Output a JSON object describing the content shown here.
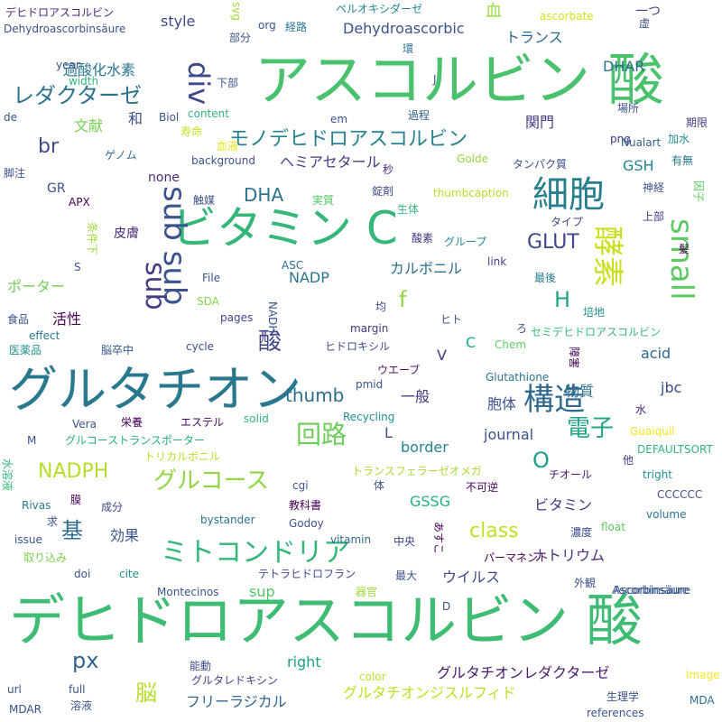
{
  "words": [
    {
      "t": "デヒドロアスコルビン 酸",
      "c": "#3fbc73"
    },
    {
      "t": "アスコルビン 酸",
      "c": "#4ac16d"
    },
    {
      "t": "グルタチオン",
      "c": "#2a788e"
    },
    {
      "t": "ビタミン C",
      "c": "#35b779"
    },
    {
      "t": "細胞",
      "c": "#277f8e"
    },
    {
      "t": "sub sub",
      "c": "#3b528b",
      "v": true
    },
    {
      "t": "sub",
      "c": "#433e85",
      "v": true
    },
    {
      "t": "small",
      "c": "#5ec962",
      "v": true
    },
    {
      "t": "div",
      "c": "#3e4989",
      "v": true
    },
    {
      "t": "構造",
      "c": "#31688e"
    },
    {
      "t": "酵素",
      "c": "#c8e020",
      "v": true
    },
    {
      "t": "ミトコンドリア",
      "c": "#35b779"
    },
    {
      "t": "回路",
      "c": "#6ccd5a"
    },
    {
      "t": "グルコース",
      "c": "#90d743"
    },
    {
      "t": "NADPH",
      "c": "#b5de2b"
    },
    {
      "t": "レダクターゼ",
      "c": "#2c728e"
    },
    {
      "t": "モノデヒドロアスコルビン",
      "c": "#26828e"
    },
    {
      "t": "電子",
      "c": "#20a486"
    },
    {
      "t": "酸",
      "c": "#414487"
    },
    {
      "t": "基",
      "c": "#2f6c8e"
    },
    {
      "t": "脳",
      "c": "#b5de2b"
    },
    {
      "t": "px",
      "c": "#33638d"
    },
    {
      "t": "GLUT",
      "c": "#3f4788"
    },
    {
      "t": "DHA",
      "c": "#2c728e"
    },
    {
      "t": "H",
      "c": "#21a685"
    },
    {
      "t": "f",
      "c": "#8fd744"
    },
    {
      "t": "class",
      "c": "#c0df25"
    },
    {
      "t": "thumb",
      "c": "#2e6d8e"
    },
    {
      "t": "O",
      "c": "#1f9e89"
    },
    {
      "t": "br",
      "c": "#3e4a89"
    },
    {
      "t": "過酸化水素",
      "c": "#2a768e"
    },
    {
      "t": "Dehydroascorbic",
      "c": "#3b528b"
    },
    {
      "t": "トランス",
      "c": "#31678e"
    },
    {
      "t": "ヘミアセタール",
      "c": "#424086"
    },
    {
      "t": "カルボニル",
      "c": "#2e6f8e"
    },
    {
      "t": "ポーター",
      "c": "#6ece58"
    },
    {
      "t": "活性",
      "c": "#440154"
    },
    {
      "t": "ウイルス",
      "c": "#3e4989"
    },
    {
      "t": "フリーラジカル",
      "c": "#32658e"
    },
    {
      "t": "グルタチオンジスルフィド",
      "c": "#c2df23"
    },
    {
      "t": "グルタチオンレダクターゼ",
      "c": "#481a6c"
    },
    {
      "t": "ミトコンドリア",
      "c": "#35b779"
    },
    {
      "t": "journal",
      "c": "#3b528b"
    },
    {
      "t": "border",
      "c": "#25858e"
    },
    {
      "t": "acid",
      "c": "#31688e"
    },
    {
      "t": "効果",
      "c": "#38598c"
    },
    {
      "t": "ナトリウム",
      "c": "#472f7d"
    },
    {
      "t": "ビタミン",
      "c": "#443a83"
    },
    {
      "t": "胞体",
      "c": "#3b528b"
    },
    {
      "t": "物質",
      "c": "#2d708e"
    },
    {
      "t": "一般",
      "c": "#453781"
    },
    {
      "t": "jbc",
      "c": "#3e4989"
    },
    {
      "t": "GSSG",
      "c": "#29af7f"
    },
    {
      "t": "NADP",
      "c": "#2b748e"
    },
    {
      "t": "GSH",
      "c": "#25838e"
    },
    {
      "t": "DHAR",
      "c": "#2f6c8e"
    },
    {
      "t": "sup",
      "c": "#52c569"
    },
    {
      "t": "right",
      "c": "#1fa088"
    },
    {
      "t": "style",
      "c": "#3f4889"
    },
    {
      "t": "none",
      "c": "#472d7b"
    },
    {
      "t": "文献",
      "c": "#75d054"
    },
    {
      "t": "和",
      "c": "#3d4e8a"
    },
    {
      "t": "血",
      "c": "#9bd93c"
    },
    {
      "t": "関門",
      "c": "#453882"
    },
    {
      "t": "L",
      "c": "#3b528b"
    },
    {
      "t": "C",
      "c": "#1fa088"
    },
    {
      "t": "V",
      "c": "#443983"
    },
    {
      "t": "GR",
      "c": "#3d4d8a"
    },
    {
      "t": "皮膚",
      "c": "#472c7a"
    },
    {
      "t": "Dehydroascorbinsäure",
      "c": "#3b528b"
    },
    {
      "t": "デヒドロアスコルビン",
      "c": "#482878"
    },
    {
      "t": "ペルオキシダーゼ",
      "c": "#24868e"
    },
    {
      "t": "一つ",
      "c": "#433e85"
    },
    {
      "t": "ascorbate",
      "c": "#d0e11c"
    },
    {
      "t": "Ascorbinsäure",
      "c": "#355f8d"
    },
    {
      "t": "セミデヒドロアスコルビン",
      "c": "#38b977"
    },
    {
      "t": "トランスフェラーゼオメガ",
      "c": "#a8db34"
    },
    {
      "t": "グルコーストランスポーター",
      "c": "#26ad81"
    },
    {
      "t": "テトラヒドロフラン",
      "c": "#3f4889"
    },
    {
      "t": "ヒドロキシル",
      "c": "#3e4c8a"
    },
    {
      "t": "エステル",
      "c": "#450559"
    },
    {
      "t": "トリカルボニル",
      "c": "#b8de29"
    },
    {
      "t": "グルタレドキシン",
      "c": "#424186"
    },
    {
      "t": "パーマネント",
      "c": "#440154"
    },
    {
      "t": "チオール",
      "c": "#481769"
    },
    {
      "t": "ウエーブ",
      "c": "#481668"
    },
    {
      "t": "取り込み",
      "c": "#7ad151"
    },
    {
      "t": "栄養",
      "c": "#440154"
    },
    {
      "t": "経路",
      "c": "#2a788e"
    },
    {
      "t": "部分",
      "c": "#3b528b"
    },
    {
      "t": "環",
      "c": "#2c718e"
    },
    {
      "t": "過程",
      "c": "#32648e"
    },
    {
      "t": "寿命",
      "c": "#c5e021"
    },
    {
      "t": "血液",
      "c": "#e5e419"
    },
    {
      "t": "触媒",
      "c": "#3a548c"
    },
    {
      "t": "脚注",
      "c": "#3b518b"
    },
    {
      "t": "ゲノム",
      "c": "#2e6e8e"
    },
    {
      "t": "実質",
      "c": "#54c568"
    },
    {
      "t": "錠剤",
      "c": "#3f4788"
    },
    {
      "t": "生体",
      "c": "#35b779"
    },
    {
      "t": "酸素",
      "c": "#46337f"
    },
    {
      "t": "グループ",
      "c": "#23898e"
    },
    {
      "t": "タンパク質",
      "c": "#3e4c8a"
    },
    {
      "t": "Golde",
      "c": "#95d840"
    },
    {
      "t": "thumbcaption",
      "c": "#b5de2b"
    },
    {
      "t": "タイプ",
      "c": "#3f4889"
    },
    {
      "t": "上部",
      "c": "#453781"
    },
    {
      "t": "神経",
      "c": "#3b528b"
    },
    {
      "t": "有無",
      "c": "#2a768e"
    },
    {
      "t": "期限",
      "c": "#453781"
    },
    {
      "t": "因子",
      "c": "#5ec962",
      "v": true
    },
    {
      "t": "場所",
      "c": "#3b528b"
    },
    {
      "t": "加水",
      "c": "#21918c"
    },
    {
      "t": "png",
      "c": "#46337f"
    },
    {
      "t": "Nualart",
      "c": "#33638d"
    },
    {
      "t": "秒",
      "c": "#46327e"
    },
    {
      "t": "最後",
      "c": "#287c8e"
    },
    {
      "t": "培地",
      "c": "#21908d"
    },
    {
      "t": "ヒト",
      "c": "#3b528b"
    },
    {
      "t": "均",
      "c": "#3e4989"
    },
    {
      "t": "margin",
      "c": "#46337f"
    },
    {
      "t": "pages",
      "c": "#414487"
    },
    {
      "t": "File",
      "c": "#3b528b"
    },
    {
      "t": "SDA",
      "c": "#84d44b"
    },
    {
      "t": "ASC",
      "c": "#2e6e8e"
    },
    {
      "t": "link",
      "c": "#433e85"
    },
    {
      "t": "食品",
      "c": "#3b528b"
    },
    {
      "t": "医薬品",
      "c": "#21918c"
    },
    {
      "t": "effect",
      "c": "#2a788e"
    },
    {
      "t": "脳卒中",
      "c": "#38598c"
    },
    {
      "t": "cycle",
      "c": "#3e4c8a"
    },
    {
      "t": "pmid",
      "c": "#3b528b"
    },
    {
      "t": "Chem",
      "c": "#63cb5f"
    },
    {
      "t": "Glutathione",
      "c": "#2c738e"
    },
    {
      "t": "障害",
      "c": "#440154",
      "v": true
    },
    {
      "t": "水",
      "c": "#482475"
    },
    {
      "t": "Guaiquil",
      "c": "#efe51c"
    },
    {
      "t": "DEFAULTSORT",
      "c": "#35b779"
    },
    {
      "t": "他",
      "c": "#443983"
    },
    {
      "t": "tright",
      "c": "#21918c"
    },
    {
      "t": "CCCCCC",
      "c": "#3b528b"
    },
    {
      "t": "volume",
      "c": "#2c728e"
    },
    {
      "t": "float",
      "c": "#5cc863"
    },
    {
      "t": "濃度",
      "c": "#3e4989"
    },
    {
      "t": "外観",
      "c": "#3b528b"
    },
    {
      "t": "Ascorbinsäure",
      "c": "#3b528b"
    },
    {
      "t": "Image",
      "c": "#fde725"
    },
    {
      "t": "MDA",
      "c": "#2c728e"
    },
    {
      "t": "生理学",
      "c": "#3b528b"
    },
    {
      "t": "references",
      "c": "#3b528b"
    },
    {
      "t": "color",
      "c": "#bade28"
    },
    {
      "t": "能動",
      "c": "#3e4c8a"
    },
    {
      "t": "最大",
      "c": "#3b528b"
    },
    {
      "t": "器官",
      "c": "#9fda3a"
    },
    {
      "t": "中央",
      "c": "#3f4889"
    },
    {
      "t": "不可逆",
      "c": "#440154"
    },
    {
      "t": "教科書",
      "c": "#440154"
    },
    {
      "t": "成分",
      "c": "#3e4989"
    },
    {
      "t": "膜",
      "c": "#440154"
    },
    {
      "t": "水溶液",
      "c": "#35b779",
      "v": true
    },
    {
      "t": "求",
      "c": "#3b528b"
    },
    {
      "t": "issue",
      "c": "#3b528b"
    },
    {
      "t": "Rivas",
      "c": "#2a788e"
    },
    {
      "t": "Vera",
      "c": "#3b528b"
    },
    {
      "t": "M",
      "c": "#3b528b"
    },
    {
      "t": "solid",
      "c": "#35b779"
    },
    {
      "t": "Recycling",
      "c": "#21918c"
    },
    {
      "t": "bystander",
      "c": "#2c728e"
    },
    {
      "t": "Godoy",
      "c": "#3b528b"
    },
    {
      "t": "vitamin",
      "c": "#31688e"
    },
    {
      "t": "cite",
      "c": "#21918c"
    },
    {
      "t": "doi",
      "c": "#3b528b"
    },
    {
      "t": "Montecinos",
      "c": "#3b528b"
    },
    {
      "t": "url",
      "c": "#3b528b"
    },
    {
      "t": "MDAR",
      "c": "#3b528b"
    },
    {
      "t": "full",
      "c": "#3b528b"
    },
    {
      "t": "溶液",
      "c": "#3b528b"
    },
    {
      "t": "content",
      "c": "#35b779"
    },
    {
      "t": "Biol",
      "c": "#3b528b"
    },
    {
      "t": "background",
      "c": "#3b528b"
    },
    {
      "t": "year",
      "c": "#3b528b"
    },
    {
      "t": "width",
      "c": "#35b779"
    },
    {
      "t": "de",
      "c": "#3b528b"
    },
    {
      "t": "em",
      "c": "#3b528b"
    },
    {
      "t": "org",
      "c": "#3b528b"
    },
    {
      "t": "svg",
      "c": "#a0da39",
      "v": true
    },
    {
      "t": "J",
      "c": "#3b528b"
    },
    {
      "t": "下部",
      "c": "#3b528b"
    },
    {
      "t": "虚",
      "c": "#3b528b"
    },
    {
      "t": "髪",
      "c": "#440154"
    },
    {
      "t": "APX",
      "c": "#440154"
    },
    {
      "t": "条件下",
      "c": "#a0da39",
      "v": true
    },
    {
      "t": "S",
      "c": "#3b528b"
    },
    {
      "t": "NADH",
      "c": "#3b528b",
      "v": true
    },
    {
      "t": "ろ",
      "c": "#3b528b"
    },
    {
      "t": "あすこ",
      "c": "#440154",
      "v": true
    },
    {
      "t": "D",
      "c": "#3b528b"
    },
    {
      "t": "cgi",
      "c": "#3b528b"
    },
    {
      "t": "体",
      "c": "#3b528b"
    }
  ]
}
